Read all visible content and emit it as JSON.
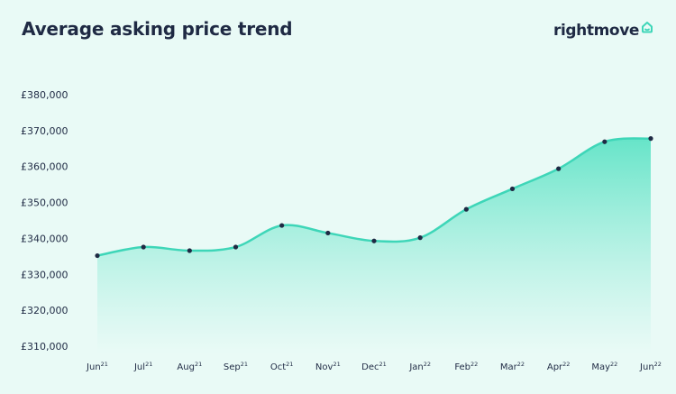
{
  "header": {
    "title": "Average asking price trend",
    "logo_text": "rightmove",
    "logo_icon": "house-outline-icon"
  },
  "colors": {
    "background": "#e9faf6",
    "line": "#3ed6b8",
    "area_top": "#5fe3c6",
    "area_bottom": "#e9faf6",
    "point": "#1f2a44",
    "text": "#1f2a44",
    "logo_icon": "#3ed6b8"
  },
  "chart_data": {
    "type": "area",
    "title": "Average asking price trend",
    "xlabel": "",
    "ylabel": "",
    "grid": false,
    "legend": "none",
    "ylim": [
      310000,
      380000
    ],
    "y_ticks": [
      380000,
      370000,
      360000,
      350000,
      340000,
      330000,
      320000,
      310000
    ],
    "y_tick_labels": [
      "£380,000",
      "£370,000",
      "£360,000",
      "£350,000",
      "£340,000",
      "£330,000",
      "£320,000",
      "£310,000"
    ],
    "categories": [
      {
        "month": "Jun",
        "year": "21"
      },
      {
        "month": "Jul",
        "year": "21"
      },
      {
        "month": "Aug",
        "year": "21"
      },
      {
        "month": "Sep",
        "year": "21"
      },
      {
        "month": "Oct",
        "year": "21"
      },
      {
        "month": "Nov",
        "year": "21"
      },
      {
        "month": "Dec",
        "year": "21"
      },
      {
        "month": "Jan",
        "year": "22"
      },
      {
        "month": "Feb",
        "year": "22"
      },
      {
        "month": "Mar",
        "year": "22"
      },
      {
        "month": "Apr",
        "year": "22"
      },
      {
        "month": "May",
        "year": "22"
      },
      {
        "month": "Jun",
        "year": "22"
      }
    ],
    "values": [
      335200,
      337600,
      336600,
      337600,
      343600,
      341500,
      339300,
      340200,
      348100,
      353800,
      359400,
      366900,
      367800
    ]
  }
}
